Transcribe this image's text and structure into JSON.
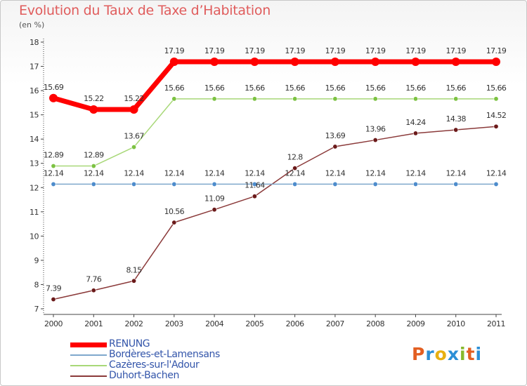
{
  "title": "Evolution du Taux de Taxe d’Habitation",
  "subtitle": "(en %)",
  "logo": {
    "text": "Proxiti",
    "letter_colors": [
      "#e35f22",
      "#2c8fd6",
      "#e8b012",
      "#2c8fd6",
      "#87b92c",
      "#e35f22",
      "#2c8fd6"
    ]
  },
  "chart_data": {
    "type": "line",
    "x": [
      "2000",
      "2001",
      "2002",
      "2003",
      "2004",
      "2005",
      "2006",
      "2007",
      "2008",
      "2009",
      "2010",
      "2011"
    ],
    "ylim": [
      7,
      18
    ],
    "yticks": [
      7,
      8,
      9,
      10,
      11,
      12,
      13,
      14,
      15,
      16,
      17,
      18
    ],
    "grid": false,
    "legend_position": "bottom-left",
    "series": [
      {
        "name": "RENUNG",
        "color": "#ff0000",
        "values": [
          15.69,
          15.22,
          15.22,
          17.19,
          17.19,
          17.19,
          17.19,
          17.19,
          17.19,
          17.19,
          17.19,
          17.19
        ],
        "labels": [
          "15.69",
          "15.22",
          "15.22",
          "17.19",
          "17.19",
          "17.19",
          "17.19",
          "17.19",
          "17.19",
          "17.19",
          "17.19",
          "17.19"
        ]
      },
      {
        "name": "Bordères-et-Lamensans",
        "color": "#7fa8cc",
        "marker_color": "#4d8ccc",
        "values": [
          12.14,
          12.14,
          12.14,
          12.14,
          12.14,
          12.14,
          12.14,
          12.14,
          12.14,
          12.14,
          12.14,
          12.14
        ],
        "labels": [
          "12.14",
          "12.14",
          "12.14",
          "12.14",
          "12.14",
          "12.14",
          "12.14",
          "12.14",
          "12.14",
          "12.14",
          "12.14",
          "12.14"
        ]
      },
      {
        "name": "Cazères-sur-l'Adour",
        "color": "#a8d878",
        "marker_color": "#7cc242",
        "values": [
          12.89,
          12.89,
          13.67,
          15.66,
          15.66,
          15.66,
          15.66,
          15.66,
          15.66,
          15.66,
          15.66,
          15.66
        ],
        "labels": [
          "12.89",
          "12.89",
          "13.67",
          "15.66",
          "15.66",
          "15.66",
          "15.66",
          "15.66",
          "15.66",
          "15.66",
          "15.66",
          "15.66"
        ]
      },
      {
        "name": "Duhort-Bachen",
        "color": "#8b3a3a",
        "marker_color": "#6b1a1a",
        "values": [
          7.39,
          7.76,
          8.15,
          10.56,
          11.09,
          11.64,
          12.8,
          13.69,
          13.96,
          14.24,
          14.38,
          14.52
        ],
        "labels": [
          "7.39",
          "7.76",
          "8.15",
          "10.56",
          "11.09",
          "11.64",
          "12.8",
          "13.69",
          "13.96",
          "14.24",
          "14.38",
          "14.52"
        ]
      }
    ]
  }
}
